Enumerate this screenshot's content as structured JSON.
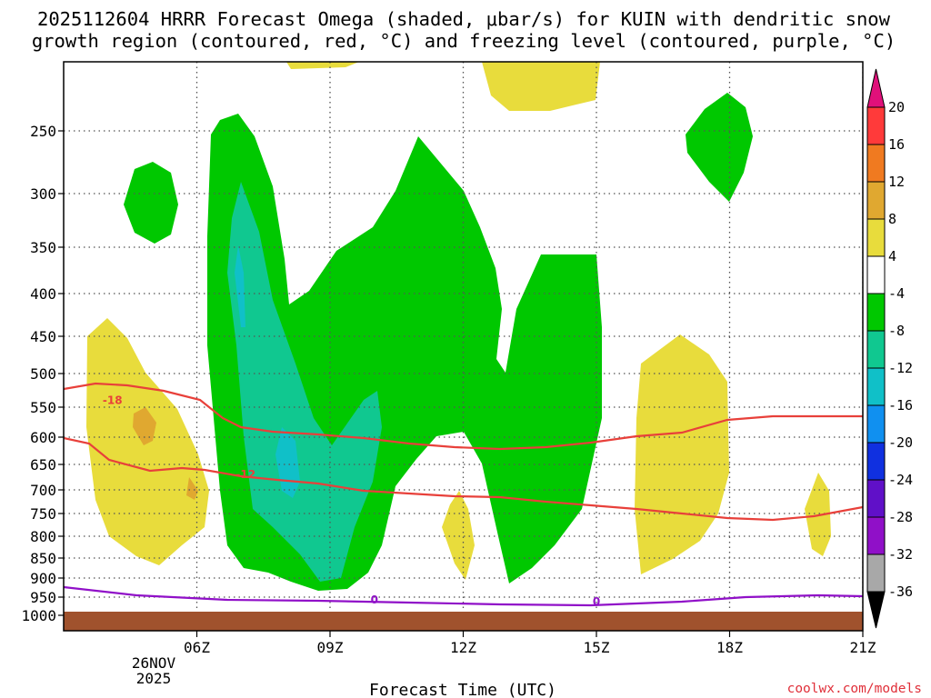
{
  "chart_data": {
    "type": "heatmap",
    "title_line1": "2025112604 HRRR Forecast Omega (shaded, μbar/s) for KUIN with dendritic snow",
    "title_line2": "growth region (contoured, red, °C) and freezing level (contoured, purple, °C)",
    "xlabel": "Forecast Time (UTC)",
    "credit": "coolwx.com/models",
    "x_range_hours": [
      3.0,
      21.0
    ],
    "y_axis": {
      "type": "pressure_hPa",
      "range": [
        1000,
        200
      ]
    },
    "x_ticks": [
      {
        "hour": 6,
        "label": "06Z"
      },
      {
        "hour": 9,
        "label": "09Z"
      },
      {
        "hour": 12,
        "label": "12Z"
      },
      {
        "hour": 15,
        "label": "15Z"
      },
      {
        "hour": 18,
        "label": "18Z"
      },
      {
        "hour": 21,
        "label": "21Z"
      }
    ],
    "date_label": [
      "26NOV",
      "2025"
    ],
    "y_ticks": [
      250,
      300,
      350,
      400,
      450,
      500,
      550,
      600,
      650,
      700,
      750,
      800,
      850,
      900,
      950,
      1000
    ],
    "colorbar": {
      "levels": [
        {
          "label": "20",
          "color": "#ff3a3a"
        },
        {
          "label": "16",
          "color": "#f07a20"
        },
        {
          "label": "12",
          "color": "#e0a830"
        },
        {
          "label": "8",
          "color": "#e8dc3c"
        },
        {
          "label": "4",
          "color": "#ffffff"
        },
        {
          "label": "-4",
          "color": "#00c800"
        },
        {
          "label": "-8",
          "color": "#10c890"
        },
        {
          "label": "-12",
          "color": "#10c0c8"
        },
        {
          "label": "-16",
          "color": "#1090f0"
        },
        {
          "label": "-20",
          "color": "#1030e0"
        },
        {
          "label": "-24",
          "color": "#6010c8"
        },
        {
          "label": "-28",
          "color": "#9010c8"
        },
        {
          "label": "-32",
          "color": "#a8a8a8"
        },
        {
          "label": "-36",
          "color": "#000000"
        }
      ],
      "top_color": "#e0107a"
    },
    "contour_labels": [
      {
        "text": "-18",
        "color": "#e8403a",
        "hour": 4.1,
        "p": 540
      },
      {
        "text": "-12",
        "color": "#e8403a",
        "hour": 7.1,
        "p": 670
      },
      {
        "text": "0",
        "color": "#9010c8",
        "hour": 10.0,
        "p": 957
      },
      {
        "text": "0",
        "color": "#9010c8",
        "hour": 15.0,
        "p": 963
      }
    ],
    "colors": {
      "yellow": "#e8dc3c",
      "orange": "#e0a830",
      "green": "#00c800",
      "teal": "#10c890",
      "cyan": "#10c0c8",
      "red_line": "#e8403a",
      "purple_line": "#9010c8",
      "ground": "#a0522d"
    }
  }
}
